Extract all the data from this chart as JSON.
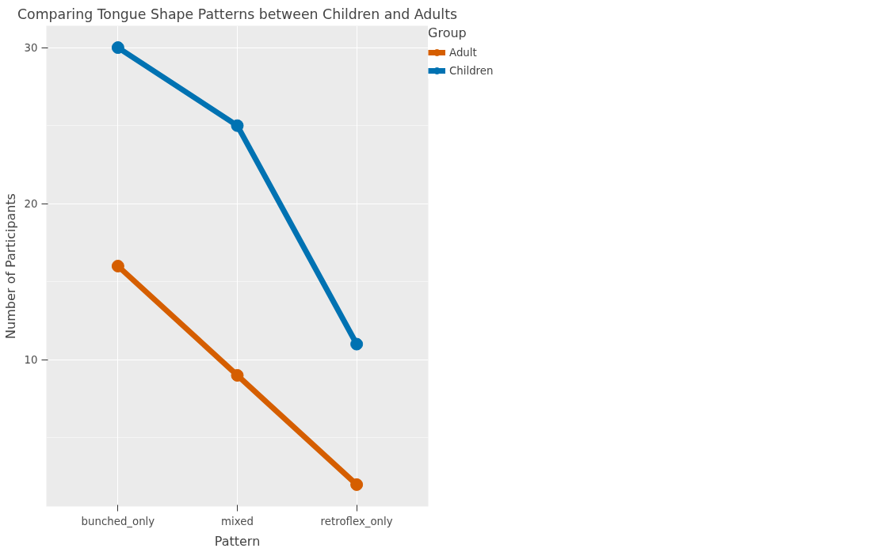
{
  "chart_data": {
    "type": "line",
    "title": "Comparing Tongue Shape Patterns between Children and Adults",
    "xlabel": "Pattern",
    "ylabel": "Number of Participants",
    "legend_title": "Group",
    "categories": [
      "bunched_only",
      "mixed",
      "retroflex_only"
    ],
    "series": [
      {
        "name": "Adult",
        "color": "#d55e00",
        "values": [
          16,
          9,
          2
        ]
      },
      {
        "name": "Children",
        "color": "#0072b2",
        "values": [
          30,
          25,
          11
        ]
      }
    ],
    "ylim": [
      0.6,
      31.4
    ],
    "yticks": [
      10,
      20,
      30
    ],
    "grid": true,
    "legend": "right",
    "marker": "circle",
    "line_style": "solid"
  }
}
